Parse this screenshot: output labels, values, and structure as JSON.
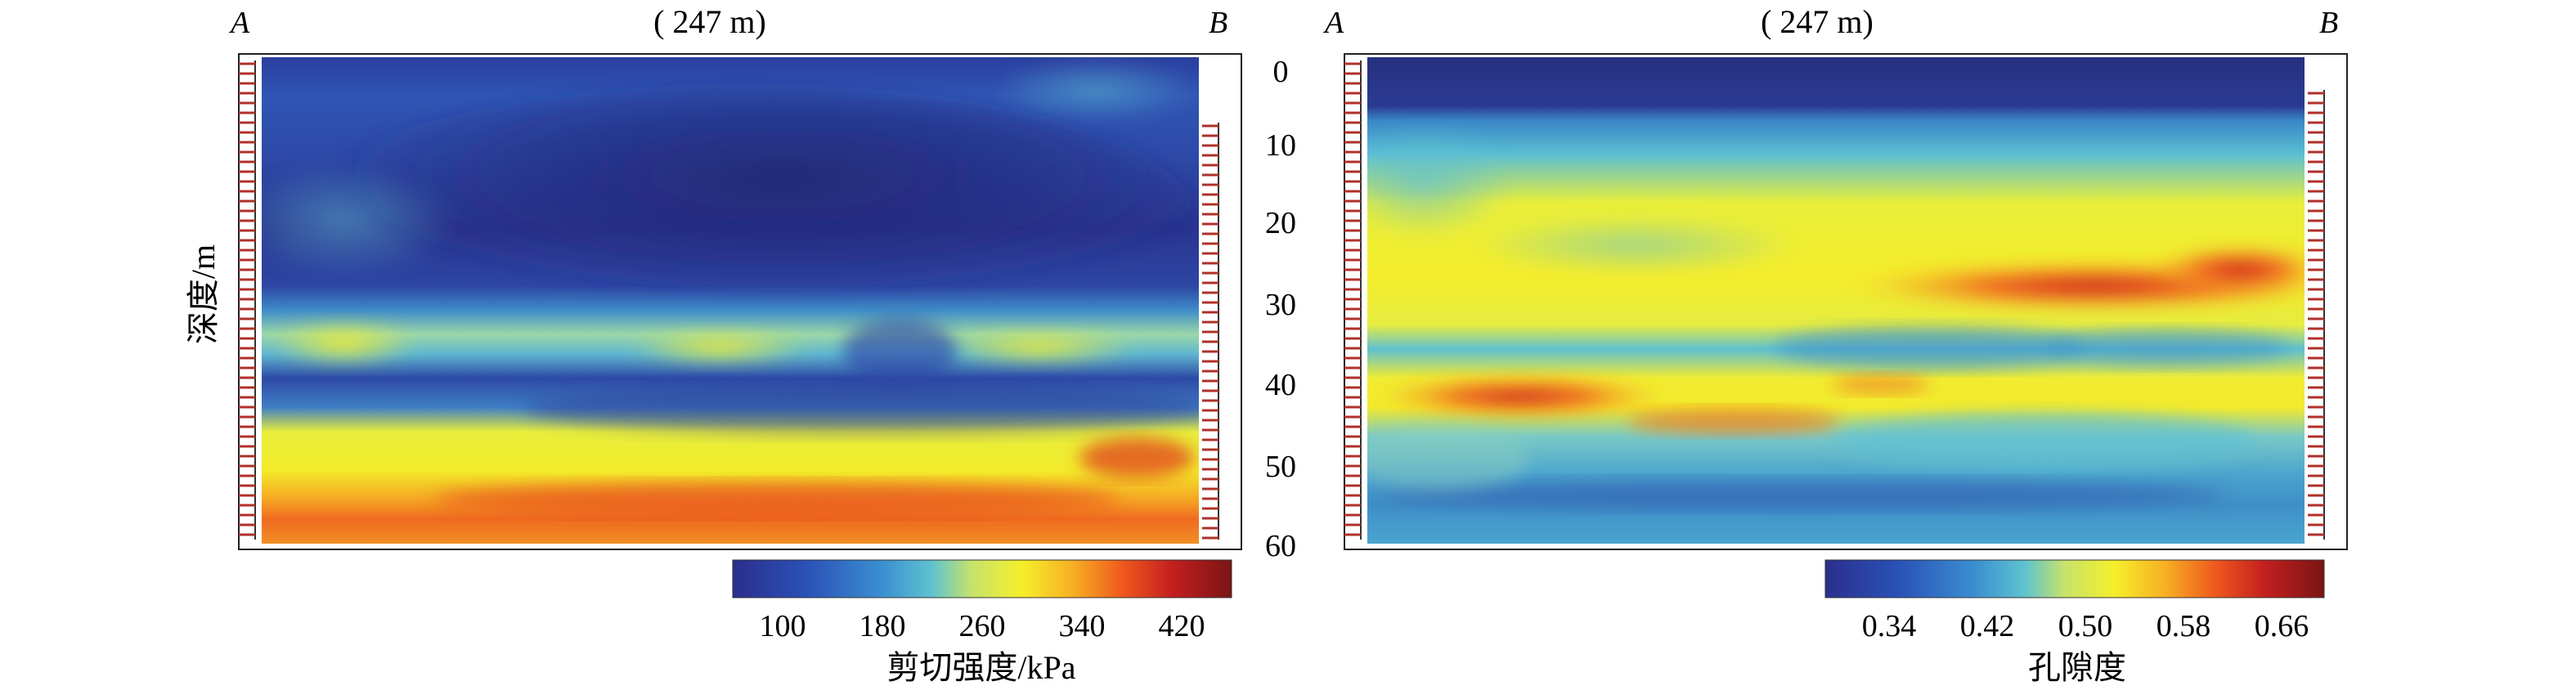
{
  "figure": {
    "depth_axis_title": "深度/m",
    "depth_ticks": [
      "0",
      "10",
      "20",
      "30",
      "40",
      "50",
      "60"
    ]
  },
  "chart_data": [
    {
      "type": "heatmap",
      "panel": "left",
      "end_label_left": "A",
      "end_label_right": "B",
      "section_length_label": "( 247 m)",
      "ylabel": "深度/m",
      "ylim": [
        0,
        60
      ],
      "colorbar": {
        "label": "剪切强度/kPa",
        "ticks": [
          "100",
          "180",
          "260",
          "340",
          "420"
        ],
        "range": [
          60,
          460
        ],
        "colors": [
          "#2a2f8c",
          "#2a52b8",
          "#3b8fd0",
          "#5fc3cf",
          "#c7e36a",
          "#f5ef2a",
          "#f7b023",
          "#ef5a1e",
          "#c41f1f",
          "#7a1414"
        ]
      },
      "field": {
        "description_bands": [
          {
            "depth": [
              0,
              6
            ],
            "value": 140
          },
          {
            "depth": [
              6,
              30
            ],
            "value": 110
          },
          {
            "depth": [
              30,
              37
            ],
            "value": 200
          },
          {
            "depth": [
              37,
              45
            ],
            "value": 130
          },
          {
            "depth": [
              45,
              53
            ],
            "value": 290
          },
          {
            "depth": [
              53,
              60
            ],
            "value": 330
          }
        ]
      }
    },
    {
      "type": "heatmap",
      "panel": "right",
      "end_label_left": "A",
      "end_label_right": "B",
      "section_length_label": "( 247 m)",
      "ylabel": "深度/m",
      "ylim": [
        0,
        60
      ],
      "colorbar": {
        "label": "孔隙度",
        "ticks": [
          "0.34",
          "0.42",
          "0.50",
          "0.58",
          "0.66"
        ],
        "range": [
          0.3,
          0.7
        ],
        "colors": [
          "#2a2f8c",
          "#2a52b8",
          "#3b8fd0",
          "#5fc3cf",
          "#c7e36a",
          "#f5ef2a",
          "#f7b023",
          "#ef5a1e",
          "#c41f1f",
          "#7a1414"
        ]
      },
      "field": {
        "description_bands": [
          {
            "depth": [
              0,
              6
            ],
            "value": 0.33
          },
          {
            "depth": [
              6,
              18
            ],
            "value": 0.43
          },
          {
            "depth": [
              18,
              27
            ],
            "value": 0.52
          },
          {
            "depth": [
              27,
              30
            ],
            "value": 0.6
          },
          {
            "depth": [
              30,
              40
            ],
            "value": 0.51
          },
          {
            "depth": [
              40,
              44
            ],
            "value": 0.58
          },
          {
            "depth": [
              44,
              52
            ],
            "value": 0.47
          },
          {
            "depth": [
              52,
              60
            ],
            "value": 0.42
          }
        ]
      }
    }
  ]
}
